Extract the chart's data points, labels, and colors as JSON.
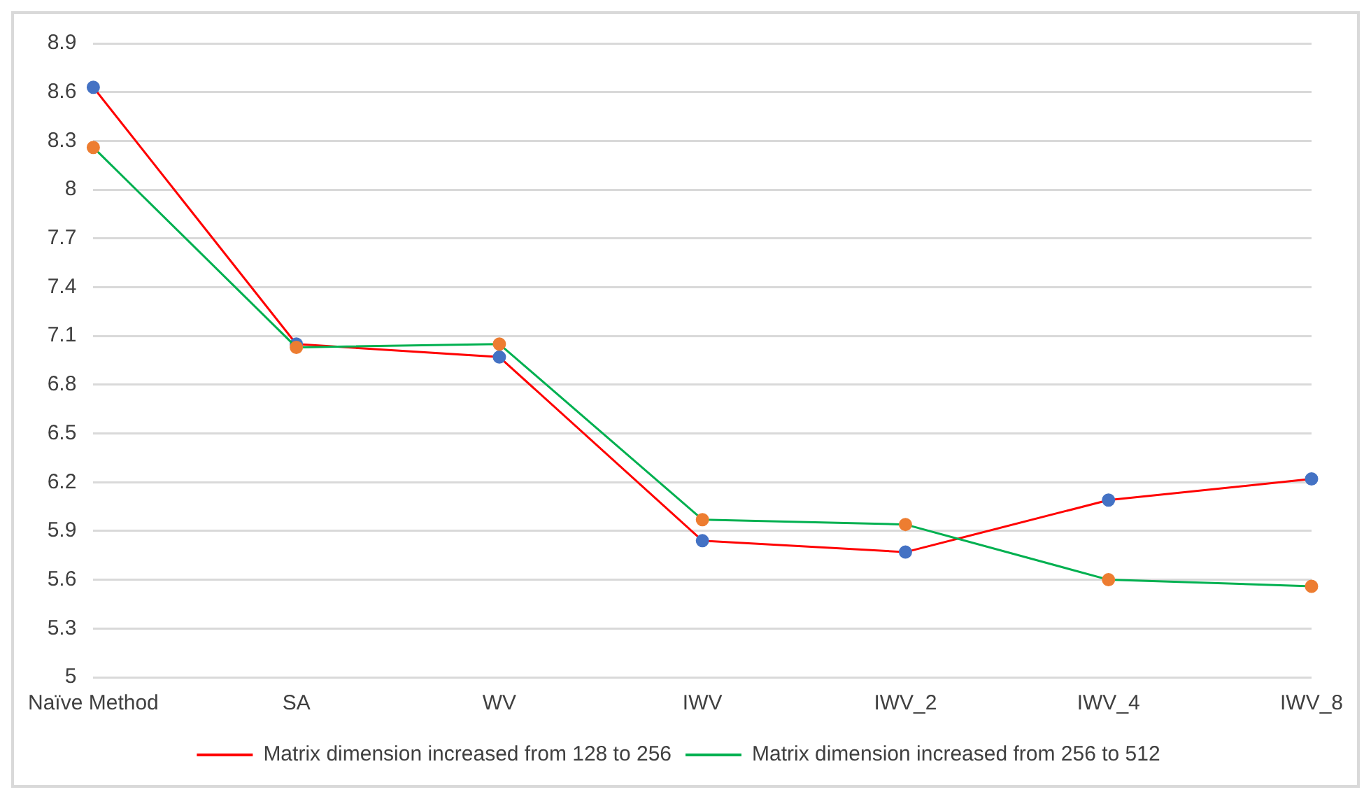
{
  "chart_data": {
    "type": "line",
    "categories": [
      "Naïve Method",
      "SA",
      "WV",
      "IWV",
      "IWV_2",
      "IWV_4",
      "IWV_8"
    ],
    "series": [
      {
        "name": "Matrix dimension increased from 128 to 256",
        "color": "#ff0000",
        "colors": [
          "#4472c4",
          "#4472c4",
          "#4472c4",
          "#4472c4",
          "#4472c4",
          "#4472c4",
          "#4472c4"
        ],
        "values": [
          8.63,
          7.05,
          6.97,
          5.84,
          5.77,
          6.09,
          6.22
        ]
      },
      {
        "name": "Matrix dimension increased from 256 to 512",
        "color": "#00b050",
        "colors": [
          "#ed7d31",
          "#ed7d31",
          "#ed7d31",
          "#ed7d31",
          "#ed7d31",
          "#ed7d31",
          "#ed7d31"
        ],
        "values": [
          8.26,
          7.03,
          7.05,
          5.97,
          5.94,
          5.6,
          5.56
        ]
      }
    ],
    "ylim": [
      5,
      8.9
    ],
    "yticks": [
      5,
      5.3,
      5.6,
      5.9,
      6.2,
      6.5,
      6.8,
      7.1,
      7.4,
      7.7,
      8,
      8.3,
      8.6,
      8.9
    ],
    "grid": "y",
    "legend": "bottom",
    "marker": "circle",
    "line_style": "solid"
  }
}
